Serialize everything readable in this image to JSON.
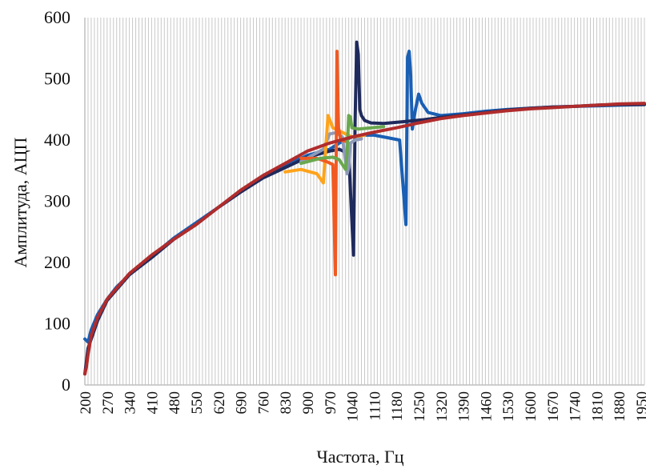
{
  "chart_data": {
    "type": "line",
    "xlabel": "Частота, Гц",
    "ylabel": "Амплитуда, АЦП",
    "xlim": [
      200,
      1960
    ],
    "ylim": [
      0,
      600
    ],
    "y_ticks": [
      "0",
      "100",
      "200",
      "300",
      "400",
      "500",
      "600"
    ],
    "x_ticks": [
      "200",
      "270",
      "340",
      "410",
      "480",
      "550",
      "620",
      "690",
      "760",
      "830",
      "900",
      "970",
      "1040",
      "1110",
      "1180",
      "1250",
      "1320",
      "1390",
      "1460",
      "1530",
      "1600",
      "1670",
      "1740",
      "1810",
      "1880",
      "1950"
    ],
    "grid": {
      "vertical": true,
      "horizontal": false,
      "x_step": 10,
      "color": "#c8c8c8"
    },
    "legend": "none",
    "series": [
      {
        "color": "#1a5fb4",
        "x": [
          200,
          210,
          220,
          240,
          270,
          300,
          340,
          410,
          480,
          550,
          620,
          690,
          760,
          830,
          900,
          970,
          1000,
          1040,
          1080,
          1110,
          1150,
          1190,
          1210,
          1215,
          1220,
          1225,
          1230,
          1240,
          1250,
          1260,
          1280,
          1320,
          1390,
          1460,
          1530,
          1600,
          1670,
          1740,
          1810,
          1880,
          1960
        ],
        "y": [
          75,
          70,
          90,
          115,
          140,
          160,
          180,
          210,
          240,
          265,
          290,
          315,
          340,
          358,
          375,
          385,
          395,
          405,
          408,
          408,
          404,
          400,
          262,
          535,
          545,
          505,
          418,
          450,
          475,
          460,
          445,
          440,
          443,
          447,
          450,
          452,
          454,
          455,
          456,
          457,
          458
        ]
      },
      {
        "color": "#1f2a5c",
        "x": [
          200,
          210,
          240,
          270,
          340,
          410,
          480,
          550,
          620,
          690,
          760,
          830,
          900,
          970,
          1000,
          1030,
          1045,
          1050,
          1055,
          1060,
          1065,
          1070,
          1080,
          1100,
          1140,
          1200,
          1260,
          1320,
          1390,
          1460,
          1530,
          1600,
          1670,
          1740,
          1810,
          1880,
          1960
        ],
        "y": [
          18,
          60,
          105,
          138,
          180,
          208,
          238,
          262,
          290,
          315,
          338,
          355,
          372,
          382,
          385,
          378,
          212,
          430,
          560,
          540,
          450,
          440,
          432,
          428,
          427,
          430,
          433,
          437,
          441,
          445,
          449,
          452,
          454,
          455,
          457,
          458,
          458
        ]
      },
      {
        "color": "#8e9ab8",
        "x": [
          880,
          950,
          970,
          990,
          1010,
          1025,
          1030,
          1035,
          1050,
          1070
        ],
        "y": [
          365,
          385,
          410,
          412,
          405,
          345,
          355,
          395,
          400,
          402
        ]
      },
      {
        "color": "#ffa31a",
        "x": [
          830,
          880,
          930,
          950,
          965,
          980,
          1000,
          1020,
          1040,
          1080
        ],
        "y": [
          348,
          352,
          345,
          330,
          440,
          420,
          415,
          410,
          405,
          408
        ]
      },
      {
        "color": "#f05a22",
        "x": [
          880,
          930,
          960,
          980,
          988,
          993,
          998,
          1005,
          1020
        ],
        "y": [
          370,
          370,
          365,
          360,
          180,
          545,
          420,
          400,
          398
        ]
      },
      {
        "color": "#6aa84f",
        "x": [
          880,
          940,
          980,
          1000,
          1020,
          1025,
          1030,
          1035,
          1040,
          1060,
          1100,
          1140
        ],
        "y": [
          362,
          370,
          372,
          368,
          352,
          380,
          440,
          438,
          420,
          418,
          420,
          422
        ]
      },
      {
        "color": "#b02c2c",
        "x": [
          200,
          205,
          210,
          220,
          240,
          270,
          340,
          410,
          480,
          550,
          620,
          690,
          760,
          830,
          900,
          970,
          1040,
          1110,
          1180,
          1250,
          1320,
          1390,
          1460,
          1530,
          1600,
          1670,
          1740,
          1810,
          1880,
          1960
        ],
        "y": [
          18,
          30,
          50,
          80,
          110,
          140,
          182,
          212,
          238,
          262,
          290,
          318,
          342,
          362,
          382,
          395,
          405,
          413,
          420,
          428,
          435,
          440,
          444,
          448,
          451,
          453,
          455,
          457,
          459,
          460
        ]
      }
    ]
  }
}
